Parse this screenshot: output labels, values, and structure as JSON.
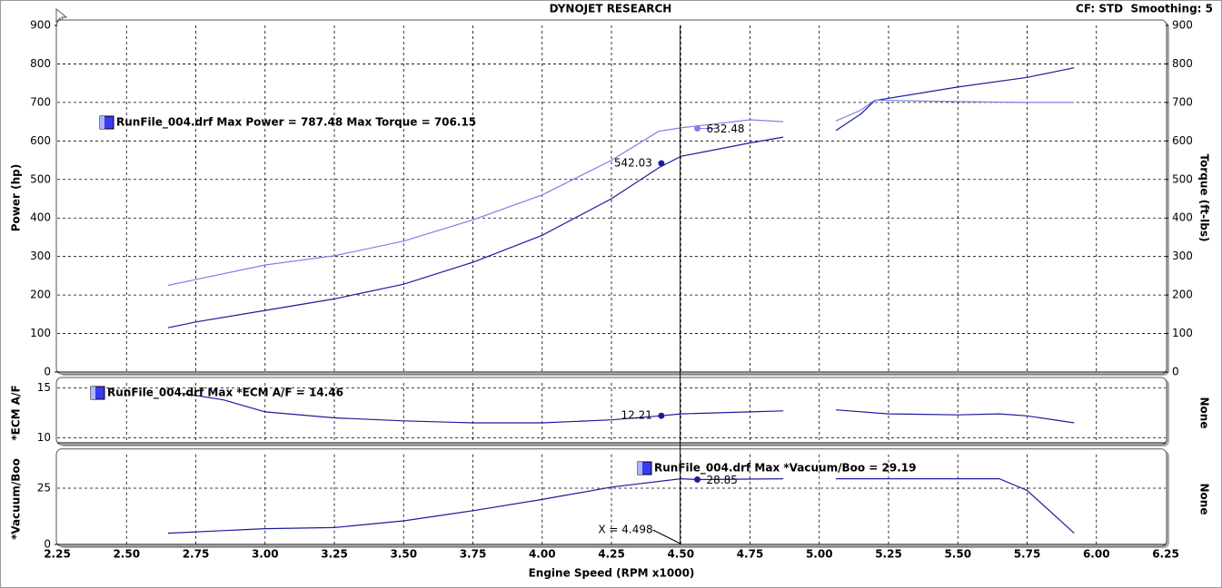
{
  "header": {
    "title": "DYNOJET RESEARCH",
    "settings": "CF: STD  Smoothing: 5"
  },
  "chart_data": [
    {
      "type": "line",
      "ylabel": "Power (hp)",
      "y2label": "Torque (ft-lbs)",
      "legend_text": "RunFile_004.drf Max Power = 787.48 Max Torque = 706.15",
      "xlim": [
        2.25,
        6.25
      ],
      "ylim": [
        0,
        900
      ],
      "yticks": [
        0,
        100,
        200,
        300,
        400,
        500,
        600,
        700,
        800,
        900
      ],
      "y2lim": [
        0,
        900
      ],
      "y2ticks": [
        0,
        100,
        200,
        300,
        400,
        500,
        600,
        700,
        800,
        900
      ],
      "grid": true,
      "x": [
        2.65,
        2.75,
        3.0,
        3.25,
        3.5,
        3.75,
        4.0,
        4.25,
        4.42,
        4.5,
        4.75,
        4.87,
        4.97,
        5.06,
        5.15,
        5.2,
        5.5,
        5.75,
        5.92
      ],
      "series": [
        {
          "name": "Power",
          "color": "#1c1c9c",
          "cursor_x": 4.43,
          "cursor_value": 542.03,
          "values": [
            115,
            130,
            160,
            190,
            228,
            285,
            355,
            450,
            530,
            560,
            595,
            610,
            null,
            627,
            670,
            705,
            740,
            765,
            790
          ]
        },
        {
          "name": "Torque",
          "color": "#7f7fe6",
          "axis": "y2",
          "cursor_x": 4.56,
          "cursor_value": 632.48,
          "values": [
            225,
            240,
            278,
            302,
            340,
            395,
            460,
            550,
            625,
            634,
            655,
            650,
            null,
            652,
            680,
            706,
            702,
            700,
            700
          ]
        }
      ]
    },
    {
      "type": "line",
      "ylabel": "*ECM A/F",
      "y2label": "None",
      "legend_text": "RunFile_004.drf Max *ECM A/F = 14.46",
      "xlim": [
        2.25,
        6.25
      ],
      "ylim": [
        9.5,
        15.5
      ],
      "yticks": [
        10,
        15
      ],
      "grid": true,
      "x": [
        2.7,
        2.85,
        3.0,
        3.25,
        3.5,
        3.75,
        4.0,
        4.25,
        4.43,
        4.5,
        4.75,
        4.87,
        4.97,
        5.06,
        5.25,
        5.5,
        5.65,
        5.75,
        5.92
      ],
      "series": [
        {
          "name": "*ECM A/F",
          "color": "#1c1c9c",
          "cursor_x": 4.43,
          "cursor_value": 12.21,
          "values": [
            14.46,
            13.8,
            12.6,
            12.0,
            11.7,
            11.5,
            11.5,
            11.8,
            12.21,
            12.4,
            12.6,
            12.7,
            null,
            12.8,
            12.4,
            12.3,
            12.4,
            12.2,
            11.5
          ]
        }
      ]
    },
    {
      "type": "line",
      "ylabel": "*Vacuum/Boo",
      "y2label": "None",
      "xlabel": "Engine Speed (RPM x1000)",
      "legend_text": "RunFile_004.drf Max *Vacuum/Boo = 29.19",
      "cursor_label": "X = 4.498",
      "cursor_x": 4.498,
      "xlim": [
        2.25,
        6.25
      ],
      "xticks": [
        2.25,
        {
          "value": 2.5,
          "label": "2.50"
        },
        2.75,
        {
          "value": 3,
          "label": "3.00"
        },
        3.25,
        {
          "value": 3.5,
          "label": "3.50"
        },
        3.75,
        {
          "value": 4,
          "label": "4.00"
        },
        4.25,
        {
          "value": 4.5,
          "label": "4.50"
        },
        4.75,
        {
          "value": 5,
          "label": "5.00"
        },
        5.25,
        {
          "value": 5.5,
          "label": "5.50"
        },
        5.75,
        {
          "value": 6,
          "label": "6.00"
        },
        6.25
      ],
      "ylim": [
        0,
        40
      ],
      "yticks": [
        0,
        25
      ],
      "grid": true,
      "x": [
        2.65,
        3.0,
        3.25,
        3.5,
        3.75,
        4.0,
        4.25,
        4.5,
        4.56,
        4.87,
        4.97,
        5.06,
        5.65,
        5.75,
        5.92
      ],
      "series": [
        {
          "name": "*Vacuum/Boo",
          "color": "#1c1c9c",
          "cursor_x": 4.56,
          "cursor_value": 28.85,
          "values": [
            5,
            7,
            7.5,
            10.5,
            15,
            20,
            25.5,
            29.2,
            28.85,
            29.2,
            null,
            29.2,
            29.2,
            24,
            5
          ]
        }
      ]
    }
  ]
}
